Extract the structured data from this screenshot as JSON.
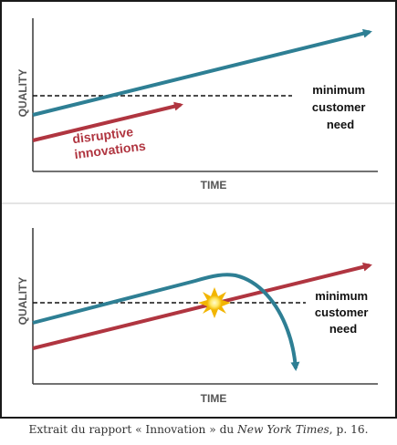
{
  "top_chart": {
    "y_axis_label": "QUALITY",
    "x_axis_label": "TIME",
    "threshold_label": [
      "minimum",
      "customer",
      "need"
    ],
    "disruptive_label": [
      "disruptive",
      "innovations"
    ]
  },
  "bottom_chart": {
    "y_axis_label": "QUALITY",
    "x_axis_label": "TIME",
    "threshold_label": [
      "minimum",
      "customer",
      "need"
    ]
  },
  "caption": {
    "prefix": "Extrait du rapport « Innovation » du ",
    "source_italic": "New York Times",
    "suffix": ", p. 16."
  },
  "colors": {
    "teal": "#2e7f94",
    "red": "#b03540",
    "axis": "#444444",
    "dashed": "#111111",
    "divider": "#c8c8c8",
    "burst_outer": "#f2b500",
    "burst_inner": "#ffe866"
  }
}
